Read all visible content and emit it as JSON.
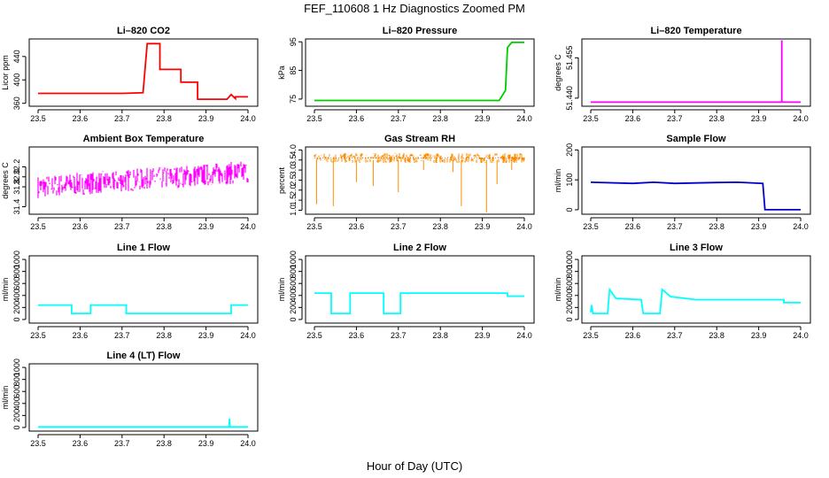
{
  "figure": {
    "title": "FEF_110608  1 Hz Diagnostics Zoomed PM",
    "xlabel": "Hour of Day (UTC)"
  },
  "chart_data": [
    {
      "type": "line",
      "title": "Li–820 CO2",
      "ylabel": "Licor ppm",
      "color": "#ff0000",
      "xlim": [
        23.5,
        24.0
      ],
      "ylim": [
        355,
        470
      ],
      "xticks": [
        "23.5",
        "23.6",
        "23.7",
        "23.8",
        "23.9",
        "24.0"
      ],
      "yticks": [
        "360",
        "400",
        "440"
      ],
      "series": [
        {
          "x": [
            23.5,
            23.56,
            23.62,
            23.68,
            23.7,
            23.75,
            23.76,
            23.77,
            23.79,
            23.79,
            23.82,
            23.84,
            23.84,
            23.88,
            23.88,
            23.92,
            23.95,
            23.96,
            23.97,
            23.97,
            24.0
          ],
          "y": [
            377,
            377,
            377,
            377,
            377,
            378,
            462,
            462,
            462,
            418,
            418,
            418,
            396,
            396,
            367,
            367,
            367,
            375,
            368,
            371,
            371
          ]
        }
      ]
    },
    {
      "type": "line",
      "title": "Li–820 Pressure",
      "ylabel": "kPa",
      "color": "#00cc00",
      "xlim": [
        23.5,
        24.0
      ],
      "ylim": [
        72.5,
        96
      ],
      "xticks": [
        "23.5",
        "23.6",
        "23.7",
        "23.8",
        "23.9",
        "24.0"
      ],
      "yticks": [
        "75",
        "85",
        "95"
      ],
      "series": [
        {
          "x": [
            23.5,
            23.6,
            23.7,
            23.8,
            23.9,
            23.93,
            23.94,
            23.955,
            23.96,
            23.97,
            24.0
          ],
          "y": [
            74.5,
            74.5,
            74.5,
            74.5,
            74.5,
            74.5,
            74.5,
            78,
            93,
            94.8,
            94.8
          ]
        }
      ]
    },
    {
      "type": "line",
      "title": "Li–820 Temperature",
      "ylabel": "degrees C",
      "color": "#ff00ff",
      "xlim": [
        23.5,
        24.0
      ],
      "ylim": [
        51.437,
        51.462
      ],
      "xticks": [
        "23.5",
        "23.6",
        "23.7",
        "23.8",
        "23.9",
        "24.0"
      ],
      "yticks": [
        "51.440",
        "51.455"
      ],
      "series": [
        {
          "x": [
            23.5,
            23.955,
            23.955,
            23.955,
            24.0
          ],
          "y": [
            51.4385,
            51.4385,
            51.4615,
            51.4385,
            51.4385
          ]
        }
      ]
    },
    {
      "type": "line",
      "title": "Ambient Box Temperature",
      "ylabel": "degrees C",
      "color": "#ff00ff",
      "xlim": [
        23.5,
        24.0
      ],
      "ylim": [
        31.25,
        32.6
      ],
      "xticks": [
        "23.5",
        "23.6",
        "23.7",
        "23.8",
        "23.9",
        "24.0"
      ],
      "yticks": [
        "31.4",
        "31.8",
        "32.0",
        "32.2"
      ],
      "series": [
        {
          "x": [
            23.5,
            23.55,
            23.6,
            23.65,
            23.7,
            23.75,
            23.8,
            23.85,
            23.9,
            23.95,
            24.0
          ],
          "y": [
            31.8,
            31.8,
            31.85,
            31.85,
            31.9,
            31.95,
            31.95,
            32.0,
            32.05,
            32.05,
            32.1
          ]
        }
      ]
    },
    {
      "type": "line",
      "title": "Gas Stream RH",
      "ylabel": "percent",
      "color": "#ff8c00",
      "xlim": [
        23.5,
        24.0
      ],
      "ylim": [
        0.8,
        4.15
      ],
      "xticks": [
        "23.5",
        "23.6",
        "23.7",
        "23.8",
        "23.9",
        "24.0"
      ],
      "yticks": [
        "1.0",
        "1.5",
        "2.0",
        "2.5",
        "3.0",
        "3.5",
        "4.0"
      ],
      "series": [
        {
          "x": [
            23.5,
            23.6,
            23.7,
            23.8,
            23.9,
            24.0
          ],
          "y": [
            3.6,
            3.6,
            3.6,
            3.6,
            3.6,
            3.6
          ]
        }
      ]
    },
    {
      "type": "line",
      "title": "Sample Flow",
      "ylabel": "ml/min",
      "color": "#0000cc",
      "xlim": [
        23.5,
        24.0
      ],
      "ylim": [
        -15,
        210
      ],
      "xticks": [
        "23.5",
        "23.6",
        "23.7",
        "23.8",
        "23.9",
        "24.0"
      ],
      "yticks": [
        "0",
        "100",
        "200"
      ],
      "series": [
        {
          "x": [
            23.5,
            23.6,
            23.65,
            23.7,
            23.8,
            23.85,
            23.91,
            23.915,
            23.92,
            24.0
          ],
          "y": [
            92,
            88,
            92,
            88,
            91,
            92,
            88,
            0,
            0,
            0
          ]
        }
      ]
    },
    {
      "type": "line",
      "title": "Line 1 Flow",
      "ylabel": "ml/min",
      "color": "#00ffff",
      "xlim": [
        23.5,
        24.0
      ],
      "ylim": [
        -60,
        1060
      ],
      "xticks": [
        "23.5",
        "23.6",
        "23.7",
        "23.8",
        "23.9",
        "24.0"
      ],
      "yticks": [
        "0",
        "200",
        "400",
        "600",
        "800",
        "1000"
      ],
      "series": [
        {
          "x": [
            23.5,
            23.58,
            23.58,
            23.625,
            23.625,
            23.71,
            23.71,
            23.96,
            23.96,
            24.0
          ],
          "y": [
            240,
            240,
            100,
            100,
            240,
            240,
            100,
            100,
            240,
            240
          ]
        }
      ]
    },
    {
      "type": "line",
      "title": "Line 2 Flow",
      "ylabel": "ml/min",
      "color": "#00ffff",
      "xlim": [
        23.5,
        24.0
      ],
      "ylim": [
        -60,
        1060
      ],
      "xticks": [
        "23.5",
        "23.6",
        "23.7",
        "23.8",
        "23.9",
        "24.0"
      ],
      "yticks": [
        "0",
        "200",
        "400",
        "600",
        "800",
        "1000"
      ],
      "series": [
        {
          "x": [
            23.5,
            23.54,
            23.54,
            23.585,
            23.585,
            23.665,
            23.665,
            23.705,
            23.705,
            23.96,
            23.96,
            24.0
          ],
          "y": [
            440,
            440,
            100,
            100,
            440,
            440,
            100,
            100,
            440,
            440,
            390,
            390
          ]
        }
      ]
    },
    {
      "type": "line",
      "title": "Line 3 Flow",
      "ylabel": "ml/min",
      "color": "#00ffff",
      "xlim": [
        23.5,
        24.0
      ],
      "ylim": [
        -60,
        1060
      ],
      "xticks": [
        "23.5",
        "23.6",
        "23.7",
        "23.8",
        "23.9",
        "24.0"
      ],
      "yticks": [
        "0",
        "200",
        "400",
        "600",
        "800",
        "1000"
      ],
      "series": [
        {
          "x": [
            23.5,
            23.502,
            23.505,
            23.54,
            23.545,
            23.56,
            23.62,
            23.625,
            23.665,
            23.67,
            23.69,
            23.75,
            23.96,
            23.96,
            24.0
          ],
          "y": [
            120,
            240,
            100,
            100,
            500,
            350,
            330,
            100,
            100,
            500,
            380,
            330,
            330,
            280,
            280
          ]
        }
      ]
    },
    {
      "type": "line",
      "title": "Line 4 (LT) Flow",
      "ylabel": "ml/min",
      "color": "#00ffff",
      "xlim": [
        23.5,
        24.0
      ],
      "ylim": [
        -60,
        1060
      ],
      "xticks": [
        "23.5",
        "23.6",
        "23.7",
        "23.8",
        "23.9",
        "24.0"
      ],
      "yticks": [
        "0",
        "200",
        "400",
        "600",
        "800",
        "1000"
      ],
      "series": [
        {
          "x": [
            23.5,
            23.955,
            23.956,
            23.957,
            23.958,
            24.0
          ],
          "y": [
            10,
            10,
            150,
            30,
            10,
            10
          ]
        }
      ]
    }
  ]
}
